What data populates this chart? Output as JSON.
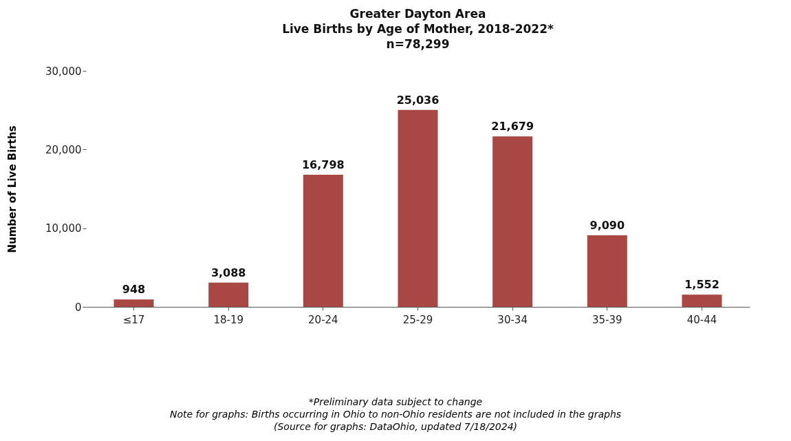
{
  "chart_data": {
    "type": "bar",
    "title": "Greater Dayton Area",
    "subtitle": "Live Births by Age of Mother, 2018-2022*\nn=78,299",
    "ylabel": "Number of Live Births",
    "categories": [
      "≤17",
      "18-19",
      "20-24",
      "25-29",
      "30-34",
      "35-39",
      "40-44"
    ],
    "values": [
      948,
      3088,
      16798,
      25036,
      21679,
      9090,
      1552
    ],
    "color": "#a84744",
    "value_labels": [
      "948",
      "3,088",
      "16,798",
      "25,036",
      "21,679",
      "9,090",
      "1,552"
    ],
    "ylim": [
      0,
      30000
    ],
    "yticks": [
      0,
      {
        "value": 10000,
        "label": "10,000"
      },
      {
        "value": 20000,
        "label": "20,000"
      },
      {
        "value": 30000,
        "label": "30,000"
      }
    ],
    "grid": false,
    "annotations": [
      "*Preliminary data subject to change",
      "Note for graphs: Births occurring in Ohio to non-Ohio residents are not included in the graphs",
      "(Source for graphs: DataOhio, updated 7/18/2024)"
    ]
  }
}
